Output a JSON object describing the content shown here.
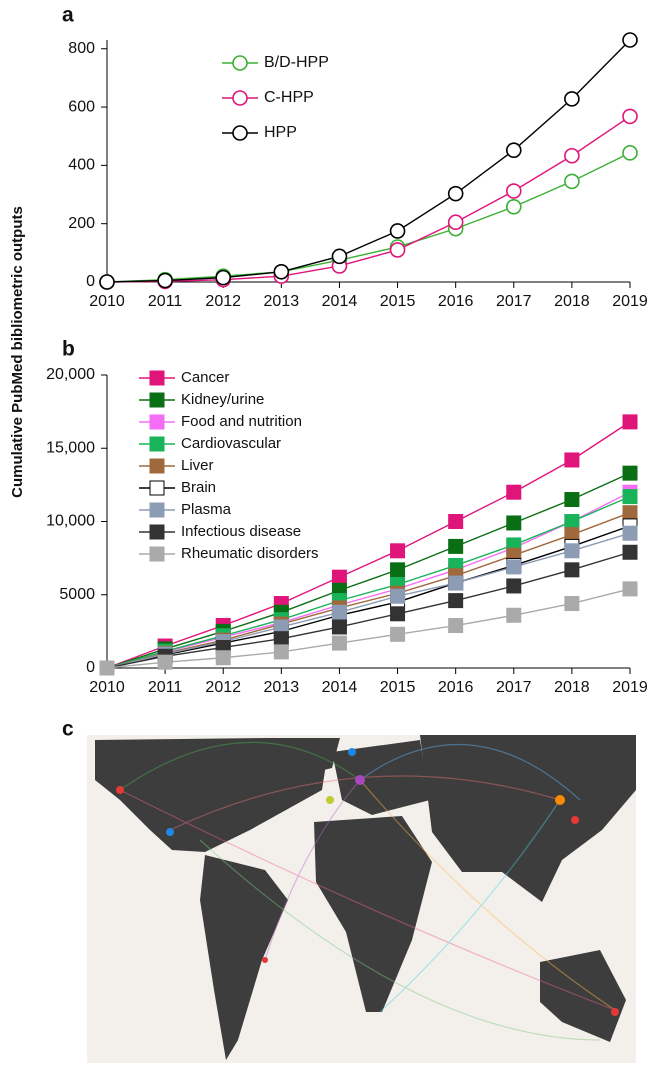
{
  "ylabel": "Cumulative PubMed bibliometric outputs",
  "chart_data": [
    {
      "type": "line",
      "label": "a",
      "marker": "circle-open",
      "legend": "upper left",
      "x": [
        2010,
        2011,
        2012,
        2013,
        2014,
        2015,
        2016,
        2017,
        2018,
        2019
      ],
      "xlim": [
        2010,
        2019
      ],
      "xticks": [
        2010,
        2011,
        2012,
        2013,
        2014,
        2015,
        2016,
        2017,
        2018,
        2019
      ],
      "ylim": [
        0,
        830
      ],
      "yticks": [
        0,
        200,
        400,
        600,
        800
      ],
      "series": [
        {
          "name": "B/D-HPP",
          "color": "#3cb034",
          "values": [
            0,
            8,
            20,
            35,
            75,
            120,
            183,
            258,
            345,
            443
          ]
        },
        {
          "name": "C-HPP",
          "color": "#e0157a",
          "values": [
            0,
            2,
            8,
            20,
            55,
            110,
            205,
            312,
            433,
            568
          ]
        },
        {
          "name": "HPP",
          "color": "#000000",
          "values": [
            0,
            5,
            15,
            35,
            88,
            175,
            303,
            452,
            628,
            830
          ]
        }
      ]
    },
    {
      "type": "line",
      "label": "b",
      "marker": "square",
      "legend": "upper left",
      "x": [
        2010,
        2011,
        2012,
        2013,
        2014,
        2015,
        2016,
        2017,
        2018,
        2019
      ],
      "xlim": [
        2010,
        2019
      ],
      "xticks": [
        2010,
        2011,
        2012,
        2013,
        2014,
        2015,
        2016,
        2017,
        2018,
        2019
      ],
      "ylim": [
        0,
        20000
      ],
      "yticks": [
        0,
        5000,
        {
          "value": 10000,
          "label": "10,000"
        },
        {
          "value": 15000,
          "label": "15,000"
        },
        {
          "value": 20000,
          "label": "20,000"
        }
      ],
      "series": [
        {
          "name": "Cancer",
          "color": "#e0157a",
          "values": [
            0,
            1500,
            2900,
            4400,
            6200,
            8000,
            10000,
            12000,
            14200,
            16800
          ]
        },
        {
          "name": "Kidney/urine",
          "color": "#0a6e14",
          "values": [
            0,
            1300,
            2500,
            3800,
            5300,
            6700,
            8300,
            9900,
            11500,
            13300
          ]
        },
        {
          "name": "Food and nutrition",
          "color": "#f56df5",
          "values": [
            0,
            1100,
            2100,
            3100,
            4300,
            5400,
            6700,
            8200,
            10000,
            12000
          ]
        },
        {
          "name": "Cardiovascular",
          "color": "#19b35a",
          "values": [
            0,
            1150,
            2200,
            3300,
            4600,
            5700,
            7000,
            8400,
            10000,
            11700
          ]
        },
        {
          "name": "Liver",
          "color": "#a0693c",
          "values": [
            0,
            1000,
            1900,
            3000,
            4100,
            5100,
            6300,
            7700,
            9100,
            10600
          ]
        },
        {
          "name": "Brain",
          "color": "#ffffff",
          "values": [
            0,
            900,
            1700,
            2500,
            3600,
            4500,
            5800,
            7000,
            8300,
            9700
          ]
        },
        {
          "name": "Plasma",
          "color": "#8c9cb4",
          "values": [
            0,
            950,
            1800,
            2800,
            3800,
            4900,
            5800,
            6900,
            8000,
            9200
          ]
        },
        {
          "name": "Infectious disease",
          "color": "#333333",
          "values": [
            0,
            800,
            1400,
            2000,
            2800,
            3700,
            4600,
            5600,
            6700,
            7900
          ]
        },
        {
          "name": "Rheumatic disorders",
          "color": "#aaaaaa",
          "values": [
            0,
            400,
            700,
            1100,
            1700,
            2300,
            2900,
            3600,
            4400,
            5400
          ]
        }
      ]
    }
  ],
  "map": {
    "label": "c"
  }
}
